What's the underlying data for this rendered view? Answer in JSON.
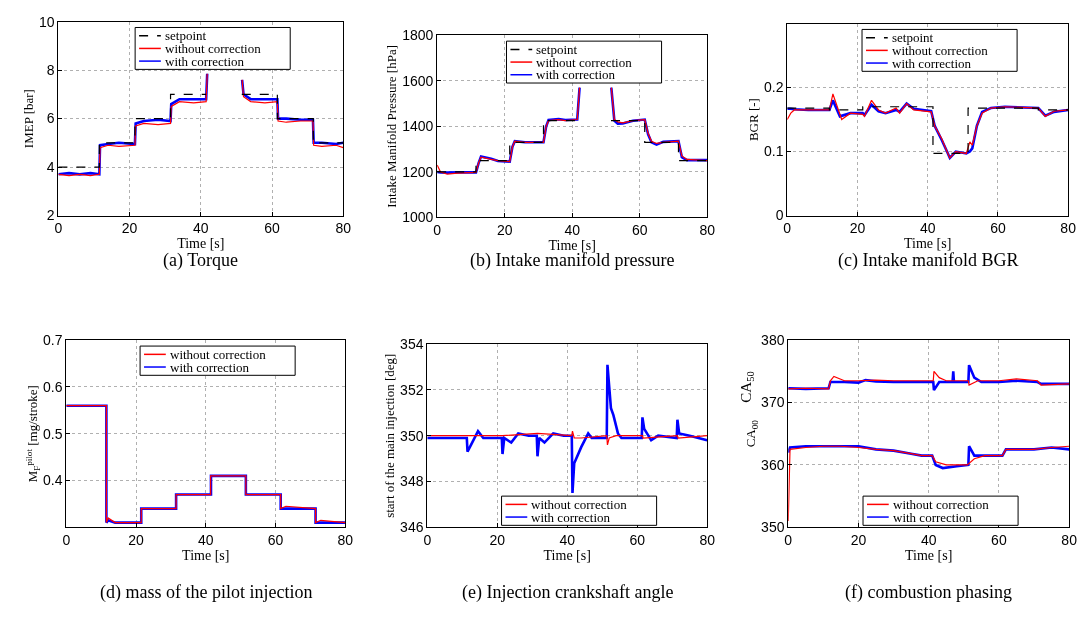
{
  "chart_data": [
    {
      "type": "line",
      "title": "(a) Torque",
      "xlabel": "Time [s]",
      "ylabel": "IMEP [bar]",
      "xlim": [
        0,
        80
      ],
      "xticks": [
        0,
        20,
        40,
        60,
        80
      ],
      "ylim": [
        2,
        10
      ],
      "yticks": [
        2,
        4,
        6,
        8,
        10
      ],
      "grid": true,
      "legend": "top",
      "series": [
        {
          "name": "setpoint",
          "color": "#000000",
          "line_style": "dashed",
          "x": [
            0,
            11.5,
            11.5,
            21.5,
            21.5,
            31.5,
            31.5,
            41.5,
            null,
            51.5,
            61.5,
            61.5,
            71.6,
            71.6,
            80
          ],
          "values": [
            4,
            4,
            5,
            5,
            6,
            6,
            7,
            7,
            null,
            7,
            7,
            6,
            6,
            5,
            5
          ]
        },
        {
          "name": "without correction",
          "color": "#ff0000",
          "x": [
            0,
            3,
            6,
            9,
            11.5,
            11.7,
            14,
            17,
            21.5,
            21.7,
            24,
            28,
            31.5,
            31.7,
            34,
            38,
            41.5,
            41.8,
            42,
            51.6,
            52,
            54,
            58,
            61.5,
            61.7,
            64,
            68,
            71.5,
            71.7,
            74,
            78,
            80
          ],
          "values": [
            3.7,
            3.65,
            3.7,
            3.65,
            3.7,
            4.8,
            4.9,
            4.85,
            4.9,
            5.7,
            5.8,
            5.75,
            5.8,
            6.5,
            6.7,
            6.65,
            6.7,
            7.85,
            null,
            7.6,
            6.9,
            6.7,
            6.65,
            6.7,
            5.9,
            5.85,
            5.9,
            5.9,
            4.9,
            4.85,
            4.9,
            4.8
          ]
        },
        {
          "name": "with correction",
          "color": "#0000ff",
          "x": [
            0,
            3,
            6,
            9,
            11.5,
            11.7,
            14,
            17,
            21.5,
            21.7,
            24,
            28,
            31.5,
            31.7,
            34,
            38,
            41.5,
            41.8,
            42,
            51.6,
            52,
            54,
            58,
            61.5,
            61.7,
            64,
            68,
            71.5,
            71.7,
            74,
            78,
            80
          ],
          "values": [
            3.7,
            3.75,
            3.7,
            3.75,
            3.7,
            4.9,
            4.95,
            5.0,
            4.95,
            5.8,
            5.9,
            5.95,
            5.9,
            6.6,
            6.8,
            6.8,
            6.8,
            7.85,
            null,
            7.6,
            7.0,
            6.8,
            6.8,
            6.8,
            6.0,
            6.0,
            5.95,
            5.95,
            5.0,
            5.0,
            4.95,
            5.0
          ]
        }
      ]
    },
    {
      "type": "line",
      "title": "(b) Intake manifold pressure",
      "xlabel": "Time [s]",
      "ylabel": "Intake Manifold Pressure [hPa]",
      "xlim": [
        0,
        80
      ],
      "xticks": [
        0,
        20,
        40,
        60,
        80
      ],
      "ylim": [
        1000,
        1800
      ],
      "yticks": [
        1000,
        1200,
        1400,
        1600,
        1800
      ],
      "grid": true,
      "legend": "top",
      "series": [
        {
          "name": "setpoint",
          "color": "#000000",
          "line_style": "dashed",
          "x": [
            0,
            11.5,
            11.5,
            21.5,
            21.5,
            31.5,
            31.5,
            41.5,
            null,
            51.5,
            61.5,
            61.5,
            71.5,
            71.5,
            80
          ],
          "values": [
            1200,
            1200,
            1250,
            1250,
            1330,
            1330,
            1425,
            1425,
            null,
            1425,
            1425,
            1330,
            1330,
            1250,
            1250
          ]
        },
        {
          "name": "without correction",
          "color": "#ff0000",
          "x": [
            0,
            1,
            3,
            6,
            11.5,
            12.3,
            13,
            16,
            18,
            21.5,
            22.3,
            23,
            26,
            31.5,
            32.3,
            33,
            36,
            38,
            41.5,
            42.2,
            42.4,
            51.6,
            52.5,
            53.5,
            55,
            58,
            61.5,
            62.5,
            63.5,
            65,
            67,
            71.5,
            72.5,
            74,
            80
          ],
          "values": [
            1230,
            1200,
            1190,
            1195,
            1198,
            1240,
            1265,
            1255,
            1250,
            1245,
            1310,
            1335,
            1330,
            1330,
            1400,
            1425,
            1430,
            1425,
            1430,
            1570,
            null,
            1570,
            1430,
            1420,
            1415,
            1425,
            1430,
            1370,
            1335,
            1325,
            1330,
            1335,
            1270,
            1255,
            1250
          ]
        },
        {
          "name": "with correction",
          "color": "#0000ff",
          "x": [
            0,
            1,
            3,
            6,
            11.5,
            12.3,
            13,
            16,
            18,
            21.5,
            22.3,
            23,
            26,
            31.5,
            32.3,
            33,
            36,
            38,
            41.5,
            42.2,
            42.4,
            51.6,
            52.5,
            53.5,
            55,
            58,
            61.5,
            62.5,
            63.5,
            65,
            67,
            71.5,
            72.5,
            74,
            80
          ],
          "values": [
            1200,
            1198,
            1197,
            1198,
            1198,
            1240,
            1268,
            1258,
            1248,
            1245,
            1310,
            1335,
            1330,
            1330,
            1400,
            1428,
            1432,
            1428,
            1430,
            1570,
            null,
            1570,
            1425,
            1412,
            1413,
            1425,
            1430,
            1365,
            1330,
            1320,
            1332,
            1335,
            1265,
            1252,
            1252
          ]
        }
      ]
    },
    {
      "type": "line",
      "title": "(c) Intake manifold BGR",
      "xlabel": "Time [s]",
      "ylabel": "BGR [-]",
      "xlim": [
        0,
        80
      ],
      "xticks": [
        0,
        20,
        40,
        60,
        80
      ],
      "ylim": [
        0,
        0.3
      ],
      "yticks": [
        0,
        0.1,
        0.2
      ],
      "grid": true,
      "legend": "top",
      "series": [
        {
          "name": "setpoint",
          "color": "#000000",
          "line_style": "dashed",
          "x": [
            0,
            12,
            12,
            21.5,
            21.5,
            41.5,
            41.5,
            51.5,
            51.5,
            71.5,
            71.5,
            80
          ],
          "values": [
            0.168,
            0.168,
            0.165,
            0.165,
            0.17,
            0.17,
            0.097,
            0.097,
            0.168,
            0.168,
            0.165,
            0.165
          ]
        },
        {
          "name": "without correction",
          "color": "#ff0000",
          "x": [
            0,
            1,
            2,
            6,
            12,
            13,
            15.5,
            18,
            21.5,
            22,
            24,
            26,
            28,
            31,
            32,
            34,
            36,
            41,
            42,
            44,
            45.5,
            46.3,
            48,
            51,
            52,
            52.7,
            54,
            55.5,
            58,
            62,
            71.5,
            73.5,
            76,
            80
          ],
          "values": [
            0.15,
            0.16,
            0.165,
            0.165,
            0.165,
            0.19,
            0.15,
            0.16,
            0.158,
            0.155,
            0.18,
            0.165,
            0.16,
            0.168,
            0.16,
            0.175,
            0.165,
            0.162,
            0.14,
            0.12,
            0.1,
            0.09,
            0.1,
            0.097,
            0.115,
            0.11,
            0.14,
            0.16,
            0.168,
            0.17,
            0.168,
            0.155,
            0.163,
            0.165
          ]
        },
        {
          "name": "with correction",
          "color": "#0000ff",
          "x": [
            0,
            1,
            2,
            6,
            12,
            13,
            15,
            18,
            21.5,
            22,
            24,
            26,
            28,
            31,
            32,
            34,
            36,
            41,
            42,
            44,
            45.5,
            46.3,
            48,
            51,
            52,
            52.7,
            54,
            55.5,
            58,
            62,
            71.5,
            73.5,
            76,
            80
          ],
          "values": [
            0.167,
            0.167,
            0.166,
            0.165,
            0.165,
            0.18,
            0.155,
            0.16,
            0.16,
            0.157,
            0.173,
            0.163,
            0.16,
            0.165,
            0.162,
            0.175,
            0.167,
            0.163,
            0.14,
            0.118,
            0.1,
            0.09,
            0.1,
            0.097,
            0.1,
            0.105,
            0.14,
            0.162,
            0.168,
            0.17,
            0.168,
            0.156,
            0.162,
            0.165
          ]
        }
      ]
    },
    {
      "type": "line",
      "title": "(d) mass of the pilot injection",
      "xlabel": "Time [s]",
      "ylabel": "M$_{F}$$^{pilot}$ [mg/stroke]",
      "xlim": [
        0,
        80
      ],
      "xticks": [
        0,
        20,
        40,
        60,
        80
      ],
      "ylim": [
        0.3,
        0.7
      ],
      "yticks": [
        0.4,
        0.5,
        0.6,
        0.7
      ],
      "grid": true,
      "legend": "top",
      "series": [
        {
          "name": "without correction",
          "color": "#ff0000",
          "x": [
            0,
            11.5,
            11.5,
            12,
            14,
            21.5,
            21.5,
            31.5,
            31.5,
            41.4,
            41.4,
            51.5,
            51.5,
            61.5,
            61.5,
            63,
            71.5,
            71.5,
            73,
            80
          ],
          "values": [
            0.56,
            0.56,
            0.31,
            0.32,
            0.31,
            0.31,
            0.34,
            0.34,
            0.37,
            0.37,
            0.41,
            0.41,
            0.37,
            0.37,
            0.34,
            0.345,
            0.34,
            0.31,
            0.315,
            0.31
          ]
        },
        {
          "name": "with correction",
          "color": "#0000ff",
          "x": [
            0,
            11.5,
            11.5,
            12,
            14,
            21.5,
            21.5,
            31.5,
            31.5,
            41.5,
            41.5,
            51.5,
            51.5,
            61.5,
            61.5,
            63,
            71.5,
            71.5,
            73,
            80
          ],
          "values": [
            0.56,
            0.56,
            0.31,
            0.315,
            0.31,
            0.31,
            0.34,
            0.34,
            0.37,
            0.37,
            0.41,
            0.41,
            0.37,
            0.37,
            0.34,
            0.34,
            0.34,
            0.31,
            0.31,
            0.31
          ]
        }
      ]
    },
    {
      "type": "line",
      "title": "(e) Injection crankshaft angle",
      "xlabel": "Time [s]",
      "ylabel": "start of the main injection [deg]",
      "xlim": [
        0,
        80
      ],
      "xticks": [
        0,
        20,
        40,
        60,
        80
      ],
      "ylim": [
        346,
        354
      ],
      "yticks": [
        346,
        348,
        350,
        352,
        354
      ],
      "grid": true,
      "legend": "bottom",
      "series": [
        {
          "name": "without correction",
          "color": "#ff0000",
          "x": [
            0,
            11.5,
            21.5,
            31.5,
            41.3,
            41.5,
            42,
            44,
            51.3,
            51.5,
            52,
            54,
            61.5,
            61.7,
            71.5,
            71.7,
            80
          ],
          "values": [
            350,
            350,
            350,
            350.1,
            350,
            350.2,
            349.9,
            349.9,
            350,
            349.6,
            349.9,
            350,
            350,
            349.9,
            350,
            349.9,
            350
          ]
        },
        {
          "name": "with correction",
          "color": "#0000ff",
          "x": [
            0,
            11.3,
            11.5,
            12.5,
            14.5,
            16,
            21.3,
            21.5,
            22,
            24,
            26,
            29,
            31.3,
            31.5,
            32,
            33.5,
            36,
            39,
            41.3,
            41.5,
            42,
            44,
            46,
            47,
            51.3,
            51.5,
            52.5,
            53.2,
            54.5,
            55.5,
            61.3,
            61.5,
            62,
            64,
            66,
            71.3,
            71.5,
            72,
            75,
            80
          ],
          "values": [
            349.9,
            349.9,
            349.3,
            349.6,
            350.2,
            349.9,
            349.9,
            349.2,
            349.9,
            349.7,
            350.1,
            350,
            350,
            349.1,
            349.9,
            349.7,
            350.1,
            350,
            350,
            347.5,
            348.8,
            349.5,
            350.1,
            349.9,
            349.9,
            353.1,
            351.2,
            350.9,
            350.1,
            349.9,
            349.9,
            350.8,
            350.3,
            349.8,
            350,
            349.9,
            350.7,
            350.1,
            350,
            349.8
          ]
        }
      ]
    },
    {
      "type": "line",
      "title": "(f) combustion phasing",
      "xlabel": "Time [s]",
      "ylabel": "CA$_{00}$",
      "annotations": [
        "CA$_{50}$"
      ],
      "xlim": [
        0,
        80
      ],
      "xticks": [
        0,
        20,
        40,
        60,
        80
      ],
      "ylim": [
        350,
        380
      ],
      "yticks": [
        350,
        360,
        370,
        380
      ],
      "grid": true,
      "legend": "bottom",
      "series": [
        {
          "name": "without correction",
          "color": "#ff0000",
          "x": [
            0,
            0.5,
            5,
            10,
            15,
            20,
            25,
            30,
            35,
            38,
            41,
            42,
            45,
            48,
            51,
            53,
            56,
            61,
            62,
            66,
            70,
            75,
            80
          ],
          "values": [
            351,
            362.5,
            362.8,
            363,
            363,
            362.8,
            362.5,
            362.3,
            361.8,
            361.5,
            361.5,
            360.5,
            360,
            360,
            360,
            361,
            361.5,
            361.5,
            362.5,
            362.5,
            362.5,
            362.8,
            363
          ]
        },
        {
          "name": "with correction",
          "color": "#0000ff",
          "x": [
            0,
            0.5,
            5,
            10,
            15,
            20,
            25,
            30,
            35,
            38,
            41,
            42,
            44,
            48,
            51.3,
            51.5,
            53,
            56,
            61,
            62,
            66,
            70,
            75,
            80
          ],
          "values": [
            362,
            362.8,
            363,
            363,
            363,
            363,
            362.5,
            362.3,
            361.8,
            361.5,
            361.5,
            360,
            359.5,
            359.8,
            360,
            363,
            361.5,
            361.5,
            361.5,
            362.5,
            362.5,
            362.5,
            362.8,
            362.5
          ]
        },
        {
          "color": "#ff0000",
          "x": [
            0,
            5,
            11.5,
            12,
            13,
            16,
            20,
            25,
            30,
            35,
            41.3,
            41.5,
            43,
            45,
            51.3,
            51.5,
            54,
            60,
            65,
            71,
            72,
            80
          ],
          "values": [
            372.2,
            372.3,
            372.2,
            373.5,
            374.2,
            373.5,
            373.5,
            373.6,
            373.5,
            373.5,
            373.5,
            375,
            374,
            373.5,
            373.5,
            372.8,
            373.5,
            373.5,
            373.8,
            373.5,
            372.8,
            373
          ]
        },
        {
          "color": "#0000ff",
          "x": [
            0,
            5,
            11.5,
            12,
            16,
            20,
            22,
            25,
            30,
            35,
            41.3,
            41.5,
            43,
            46.8,
            47,
            47.2,
            51.3,
            51.5,
            53,
            55,
            60,
            65,
            71,
            72,
            80
          ],
          "values": [
            372.3,
            372.2,
            372.3,
            373.3,
            373.3,
            373.2,
            373.6,
            373.4,
            373.3,
            373.3,
            373.3,
            372,
            373.3,
            373.3,
            375,
            373.3,
            373.3,
            376,
            374,
            373.3,
            373.3,
            373.5,
            373.3,
            373,
            373
          ]
        }
      ]
    }
  ]
}
